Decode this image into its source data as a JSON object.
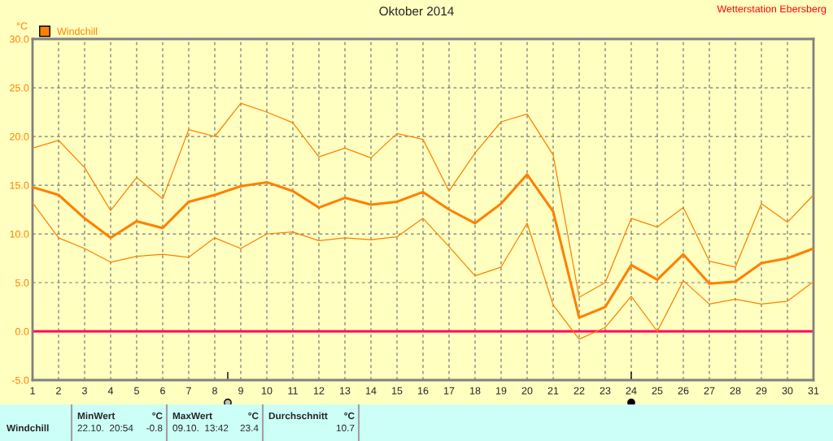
{
  "chart_data": {
    "type": "line",
    "title": "Oktober 2014",
    "ylabel": "°C",
    "x": [
      1,
      2,
      3,
      4,
      5,
      6,
      7,
      8,
      9,
      10,
      11,
      12,
      13,
      14,
      15,
      16,
      17,
      18,
      19,
      20,
      21,
      22,
      23,
      24,
      25,
      26,
      27,
      28,
      29,
      30,
      31
    ],
    "series": [
      {
        "name": "Windchill",
        "color": "#ff8000",
        "values": [
          14.8,
          14.0,
          11.6,
          9.6,
          11.3,
          10.6,
          13.3,
          14.0,
          14.9,
          15.3,
          14.4,
          12.7,
          13.7,
          13.0,
          13.3,
          14.3,
          12.5,
          11.1,
          13.1,
          16.1,
          12.3,
          1.4,
          2.5,
          6.8,
          5.3,
          7.9,
          4.9,
          5.1,
          7.0,
          7.5,
          8.5
        ]
      },
      {
        "color": "#ff8000",
        "values": [
          18.8,
          19.6,
          16.8,
          12.4,
          15.8,
          13.6,
          20.7,
          20.0,
          23.4,
          22.5,
          21.4,
          17.9,
          18.8,
          17.8,
          20.3,
          19.7,
          14.4,
          18.3,
          21.5,
          22.3,
          18.1,
          3.5,
          5.0,
          11.6,
          10.7,
          12.7,
          7.2,
          6.6,
          13.1,
          11.2,
          14.0
        ]
      },
      {
        "color": "#ff8000",
        "values": [
          13.2,
          9.6,
          8.5,
          7.1,
          7.7,
          7.9,
          7.6,
          9.6,
          8.5,
          10.0,
          10.2,
          9.3,
          9.6,
          9.4,
          9.7,
          11.6,
          8.7,
          5.7,
          6.6,
          11.1,
          2.7,
          -0.8,
          0.4,
          3.6,
          0.0,
          5.2,
          2.8,
          3.3,
          2.8,
          3.1,
          5.1
        ]
      }
    ],
    "xlim": [
      1,
      31
    ],
    "xticks": [
      1,
      2,
      3,
      4,
      5,
      6,
      7,
      8,
      9,
      10,
      11,
      12,
      13,
      14,
      15,
      16,
      17,
      18,
      19,
      20,
      21,
      22,
      23,
      24,
      25,
      26,
      27,
      28,
      29,
      30,
      31
    ],
    "ylim": [
      -5,
      30
    ],
    "yticks": [
      {
        "value": -5,
        "label": "-5.0"
      },
      {
        "value": 0,
        "label": "0.0"
      },
      {
        "value": 5,
        "label": "5.0"
      },
      {
        "value": 10,
        "label": "10.0"
      },
      {
        "value": 15,
        "label": "15.0"
      },
      {
        "value": 20,
        "label": "20.0"
      },
      {
        "value": 25,
        "label": "25.0"
      },
      {
        "value": 30,
        "label": "30.0"
      }
    ],
    "ref_lines": [
      {
        "axis": "y",
        "value": 0,
        "color": "#ff0066"
      }
    ],
    "grid": true,
    "legend": "top left",
    "marker": "none",
    "line_style": "solid",
    "annotations": [
      "Wetterstation Ebersberg",
      "Windchill",
      "MinWert",
      "°C",
      "22.10.  20:54",
      "-0.8",
      "MaxWert",
      "°C",
      "09.10.  13:42",
      "23.4",
      "Durchschnitt",
      "°C",
      "10.7"
    ]
  }
}
